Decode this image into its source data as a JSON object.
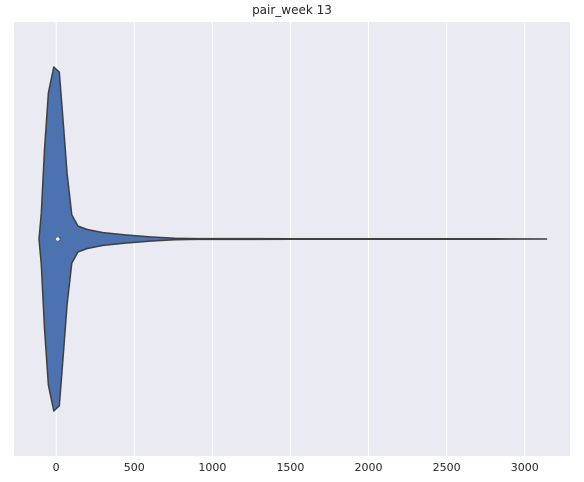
{
  "chart_data": {
    "type": "violin",
    "title": "pair_week 13",
    "xlabel": "",
    "ylabel": "",
    "xlim": [
      -270,
      3290
    ],
    "xticks": [
      0,
      500,
      1000,
      1500,
      2000,
      2500,
      3000
    ],
    "xtick_labels": [
      "0",
      "500",
      "1000",
      "1500",
      "2000",
      "2500",
      "3000"
    ],
    "grid": true,
    "orientation": "horizontal",
    "colors": {
      "violin_fill": "#4c72b0",
      "violin_edge": "#3f3f3f",
      "background": "#eaeaf2",
      "grid": "#ffffff"
    },
    "violin": {
      "density_profile": [
        {
          "x": -110,
          "halfwidth": 0.0
        },
        {
          "x": -95,
          "halfwidth": 0.15
        },
        {
          "x": -75,
          "halfwidth": 0.52
        },
        {
          "x": -50,
          "halfwidth": 0.85
        },
        {
          "x": -15,
          "halfwidth": 1.0
        },
        {
          "x": 20,
          "halfwidth": 0.97
        },
        {
          "x": 45,
          "halfwidth": 0.68
        },
        {
          "x": 70,
          "halfwidth": 0.38
        },
        {
          "x": 100,
          "halfwidth": 0.14
        },
        {
          "x": 140,
          "halfwidth": 0.075
        },
        {
          "x": 200,
          "halfwidth": 0.055
        },
        {
          "x": 300,
          "halfwidth": 0.037
        },
        {
          "x": 450,
          "halfwidth": 0.023
        },
        {
          "x": 600,
          "halfwidth": 0.012
        },
        {
          "x": 760,
          "halfwidth": 0.004
        },
        {
          "x": 900,
          "halfwidth": 0.0025
        },
        {
          "x": 1100,
          "halfwidth": 0.0022
        },
        {
          "x": 1300,
          "halfwidth": 0.0025
        },
        {
          "x": 1500,
          "halfwidth": 0.0015
        },
        {
          "x": 2000,
          "halfwidth": 0.001
        },
        {
          "x": 2500,
          "halfwidth": 0.001
        },
        {
          "x": 2800,
          "halfwidth": 0.0012
        },
        {
          "x": 3140,
          "halfwidth": 0.0
        }
      ],
      "box": {
        "q1": 3,
        "median": 11,
        "q3": 27
      }
    }
  }
}
